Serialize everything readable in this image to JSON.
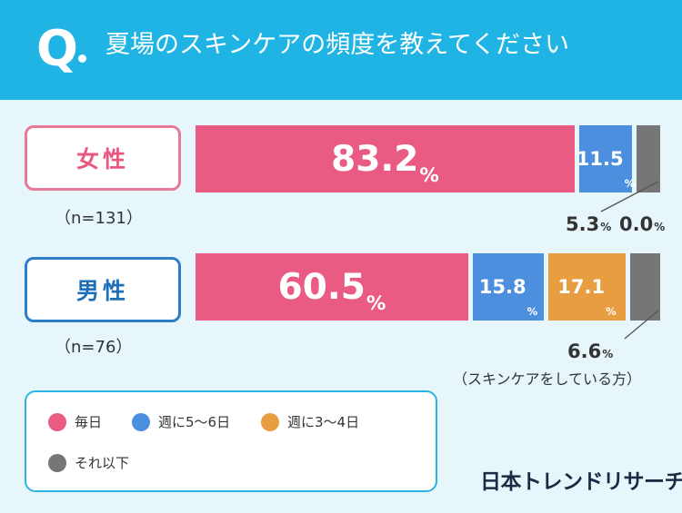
{
  "header": {
    "q_letter": "Q",
    "question": "夏場のスキンケアの頻度を教えてください"
  },
  "chart_data": {
    "type": "bar",
    "stacked": true,
    "orientation": "horizontal",
    "title": "夏場のスキンケアの頻度を教えてください",
    "categories": [
      "女性",
      "男性"
    ],
    "sample_sizes": [
      "（n=131）",
      "（n=76）"
    ],
    "unit": "%",
    "series": [
      {
        "name": "毎日",
        "color": "#ea5b83",
        "values": [
          83.2,
          60.5
        ],
        "labels": [
          "83.2",
          "60.5"
        ]
      },
      {
        "name": "週に5〜6日",
        "color": "#4b8fde",
        "values": [
          11.5,
          15.8
        ],
        "labels": [
          "11.5",
          "15.8"
        ]
      },
      {
        "name": "週に3〜4日",
        "color": "#e89e40",
        "values": [
          0.0,
          17.1
        ],
        "labels": [
          "0.0",
          "17.1"
        ]
      },
      {
        "name": "それ以下",
        "color": "#767676",
        "values": [
          5.3,
          6.6
        ],
        "labels": [
          "5.3",
          "6.6"
        ]
      }
    ],
    "note": "（スキンケアをしている方）"
  },
  "brand": "日本トレンドリサーチ"
}
